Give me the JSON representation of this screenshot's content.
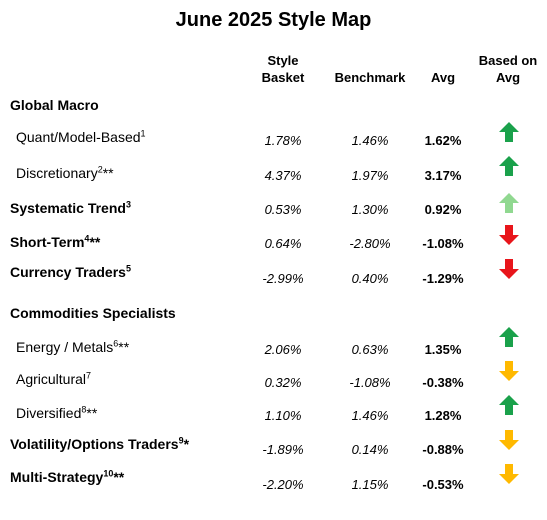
{
  "title": "June 2025 Style Map",
  "headers": {
    "style_basket_1": "Style",
    "style_basket_2": "Basket",
    "benchmark": "Benchmark",
    "avg": "Avg",
    "based_on_avg_1": "Based on",
    "based_on_avg_2": "Avg"
  },
  "colors": {
    "up_dark_green": "#1aa14b",
    "up_light_green": "#90d890",
    "down_red": "#e8151b",
    "down_amber": "#ffb900"
  },
  "rows": [
    {
      "label": "Global Macro",
      "sup": "",
      "suffix": "",
      "kind": "section"
    },
    {
      "label": "Quant/Model-Based",
      "sup": "1",
      "suffix": "",
      "style_basket": "1.78%",
      "benchmark": "1.46%",
      "avg": "1.62%",
      "arrow": "up",
      "arrow_color": "#1aa14b"
    },
    {
      "label": "Discretionary",
      "sup": "2",
      "suffix": "**",
      "style_basket": "4.37%",
      "benchmark": "1.97%",
      "avg": "3.17%",
      "arrow": "up",
      "arrow_color": "#1aa14b"
    },
    {
      "label": "Systematic Trend",
      "sup": "3",
      "suffix": "",
      "style_basket": "0.53%",
      "benchmark": "1.30%",
      "avg": "0.92%",
      "arrow": "up",
      "arrow_color": "#90d890"
    },
    {
      "label": "Short-Term",
      "sup": "4",
      "suffix": "**",
      "style_basket": "0.64%",
      "benchmark": "-2.80%",
      "avg": "-1.08%",
      "arrow": "down",
      "arrow_color": "#e8151b"
    },
    {
      "label": "Currency Traders",
      "sup": "5",
      "suffix": "",
      "style_basket": "-2.99%",
      "benchmark": "0.40%",
      "avg": "-1.29%",
      "arrow": "down",
      "arrow_color": "#e8151b"
    },
    {
      "label": "Commodities Specialists",
      "sup": "",
      "suffix": "",
      "kind": "section"
    },
    {
      "label": "Energy / Metals",
      "sup": "6",
      "suffix": "**",
      "style_basket": "2.06%",
      "benchmark": "0.63%",
      "avg": "1.35%",
      "arrow": "up",
      "arrow_color": "#1aa14b"
    },
    {
      "label": "Agricultural",
      "sup": "7",
      "suffix": "",
      "style_basket": "0.32%",
      "benchmark": "-1.08%",
      "avg": "-0.38%",
      "arrow": "down",
      "arrow_color": "#ffb900"
    },
    {
      "label": "Diversified",
      "sup": "8",
      "suffix": "**",
      "style_basket": "1.10%",
      "benchmark": "1.46%",
      "avg": "1.28%",
      "arrow": "up",
      "arrow_color": "#1aa14b"
    },
    {
      "label": "Volatility/Options Traders",
      "sup": "9",
      "suffix": "*",
      "style_basket": "-1.89%",
      "benchmark": "0.14%",
      "avg": "-0.88%",
      "arrow": "down",
      "arrow_color": "#ffb900"
    },
    {
      "label": "Multi-Strategy",
      "sup": "10",
      "suffix": "**",
      "style_basket": "-2.20%",
      "benchmark": "1.15%",
      "avg": "-0.53%",
      "arrow": "down",
      "arrow_color": "#ffb900"
    }
  ]
}
